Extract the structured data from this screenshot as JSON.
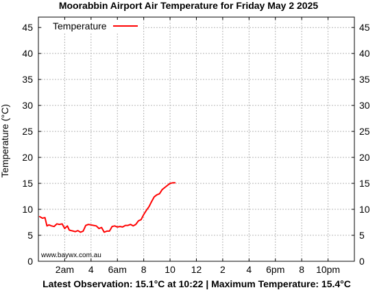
{
  "title": "Moorabbin Airport Air Temperature  for Friday May 2 2025",
  "footer": "Latest Observation: 15.1°C at 10:22 | Maximum Temperature: 15.4°C",
  "credit": "www.baywx.com.au",
  "colors": {
    "series": "#ff0000",
    "grid": "#b4b4b4",
    "axis": "#000000"
  },
  "chart_data": {
    "type": "line",
    "title": "Moorabbin Airport Air Temperature  for Friday May 2 2025",
    "xlabel": "",
    "ylabel": "Temperature (°C)",
    "xlim": [
      0,
      24
    ],
    "ylim": [
      0,
      47
    ],
    "grid": true,
    "legend_placement": "top-left",
    "x_ticks": [
      {
        "hour": 2,
        "label": "2am"
      },
      {
        "hour": 4,
        "label": "4"
      },
      {
        "hour": 6,
        "label": "6am"
      },
      {
        "hour": 8,
        "label": "8"
      },
      {
        "hour": 10,
        "label": "10"
      },
      {
        "hour": 12,
        "label": "12"
      },
      {
        "hour": 14,
        "label": "2"
      },
      {
        "hour": 16,
        "label": "4"
      },
      {
        "hour": 18,
        "label": "6pm"
      },
      {
        "hour": 20,
        "label": "8"
      },
      {
        "hour": 22,
        "label": "10pm"
      }
    ],
    "y_ticks": [
      0,
      5,
      10,
      15,
      20,
      25,
      30,
      35,
      40,
      45
    ],
    "series": [
      {
        "name": "Temperature",
        "color": "#ff0000",
        "x": [
          0.1,
          0.3,
          0.5,
          0.65,
          0.8,
          1.0,
          1.2,
          1.4,
          1.6,
          1.8,
          2.0,
          2.2,
          2.35,
          2.5,
          2.65,
          2.8,
          3.0,
          3.2,
          3.4,
          3.6,
          3.8,
          4.0,
          4.2,
          4.4,
          4.6,
          4.8,
          5.0,
          5.2,
          5.4,
          5.6,
          5.8,
          6.0,
          6.2,
          6.4,
          6.6,
          6.8,
          7.0,
          7.2,
          7.4,
          7.6,
          7.8,
          8.0,
          8.2,
          8.4,
          8.6,
          8.8,
          9.0,
          9.2,
          9.4,
          9.6,
          9.8,
          10.0,
          10.2,
          10.37
        ],
        "y": [
          8.6,
          8.3,
          8.4,
          6.8,
          7.0,
          6.8,
          6.7,
          7.2,
          7.1,
          7.2,
          6.3,
          6.8,
          6.0,
          5.9,
          5.8,
          5.7,
          5.9,
          5.6,
          5.8,
          6.9,
          7.1,
          7.0,
          6.9,
          6.8,
          6.3,
          6.5,
          5.6,
          5.8,
          5.8,
          6.7,
          6.8,
          6.6,
          6.7,
          6.6,
          6.9,
          6.9,
          7.1,
          6.8,
          7.1,
          7.8,
          8.0,
          9.0,
          9.8,
          10.5,
          11.5,
          12.4,
          12.8,
          13.0,
          13.8,
          14.2,
          14.6,
          15.0,
          15.1,
          15.1
        ]
      }
    ]
  }
}
